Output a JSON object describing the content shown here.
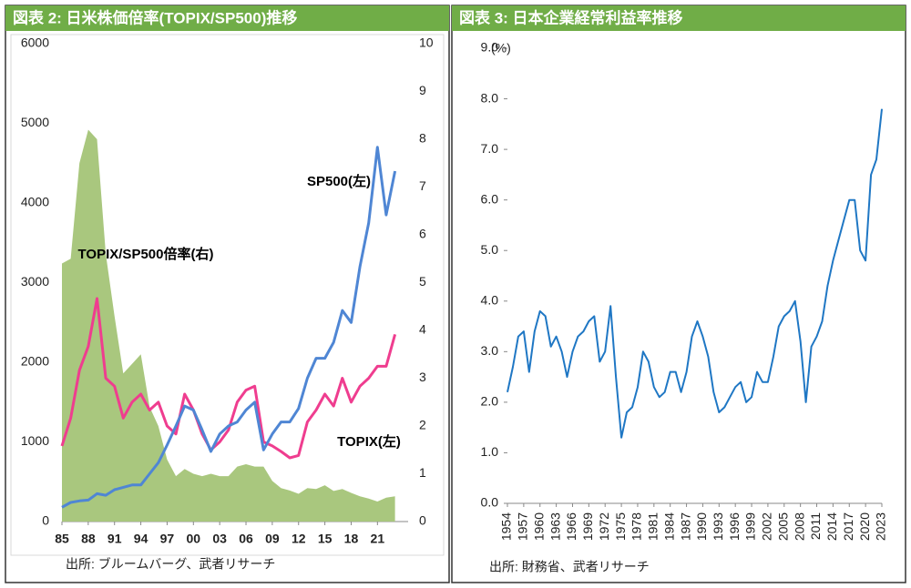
{
  "chart_data": [
    {
      "type": "line",
      "title": "図表 2: 日米株価倍率(TOPIX/SP500)推移",
      "source": "出所: ブルームバーグ、武者リサーチ",
      "annotations": [
        "SP500(左)",
        "TOPIX(左)",
        "TOPIX/SP500倍率(右)"
      ],
      "x": [
        1985,
        1986,
        1987,
        1988,
        1989,
        1990,
        1991,
        1992,
        1993,
        1994,
        1995,
        1996,
        1997,
        1998,
        1999,
        2000,
        2001,
        2002,
        2003,
        2004,
        2005,
        2006,
        2007,
        2008,
        2009,
        2010,
        2011,
        2012,
        2013,
        2014,
        2015,
        2016,
        2017,
        2018,
        2019,
        2020,
        2021,
        2022,
        2023
      ],
      "xlim": [
        1985,
        2024.5
      ],
      "xticks": [
        {
          "value": 1985,
          "label": "85"
        },
        {
          "value": 1988,
          "label": "88"
        },
        {
          "value": 1991,
          "label": "91"
        },
        {
          "value": 1994,
          "label": "94"
        },
        {
          "value": 1997,
          "label": "97"
        },
        {
          "value": 2000,
          "label": "00"
        },
        {
          "value": 2003,
          "label": "03"
        },
        {
          "value": 2006,
          "label": "06"
        },
        {
          "value": 2009,
          "label": "09"
        },
        {
          "value": 2012,
          "label": "12"
        },
        {
          "value": 2015,
          "label": "15"
        },
        {
          "value": 2018,
          "label": "18"
        },
        {
          "value": 2021,
          "label": "21"
        }
      ],
      "ylim": [
        0,
        6000
      ],
      "yticks": [
        0,
        1000,
        2000,
        3000,
        4000,
        5000,
        6000
      ],
      "y2lim": [
        0,
        10
      ],
      "y2ticks": [
        0,
        1,
        2,
        3,
        4,
        5,
        6,
        7,
        8,
        9,
        10
      ],
      "series": [
        {
          "name": "TOPIX/SP500倍率",
          "color": "#a9c77e",
          "style": "area",
          "axis": "y2",
          "values": [
            5.4,
            5.5,
            7.5,
            8.2,
            8.0,
            5.6,
            4.3,
            3.1,
            3.3,
            3.5,
            2.4,
            2.0,
            1.3,
            0.95,
            1.1,
            1.0,
            0.95,
            1.0,
            0.95,
            0.95,
            1.15,
            1.2,
            1.15,
            1.15,
            0.85,
            0.7,
            0.65,
            0.58,
            0.7,
            0.68,
            0.76,
            0.64,
            0.68,
            0.6,
            0.53,
            0.48,
            0.42,
            0.5,
            0.53
          ]
        },
        {
          "name": "TOPIX",
          "color": "#ef3d8f",
          "style": "line",
          "values": [
            950,
            1300,
            1900,
            2200,
            2800,
            1800,
            1700,
            1300,
            1500,
            1600,
            1400,
            1500,
            1200,
            1100,
            1600,
            1400,
            1100,
            900,
            1000,
            1150,
            1500,
            1650,
            1700,
            1000,
            950,
            880,
            800,
            830,
            1250,
            1400,
            1600,
            1450,
            1800,
            1500,
            1700,
            1800,
            1950,
            1950,
            2350
          ]
        },
        {
          "name": "SP500",
          "color": "#4f86d4",
          "style": "line",
          "values": [
            180,
            240,
            260,
            270,
            350,
            330,
            400,
            430,
            460,
            460,
            600,
            740,
            960,
            1200,
            1450,
            1400,
            1150,
            880,
            1100,
            1200,
            1250,
            1400,
            1500,
            900,
            1100,
            1250,
            1250,
            1420,
            1800,
            2050,
            2050,
            2250,
            2650,
            2500,
            3200,
            3750,
            4700,
            3850,
            4400
          ]
        }
      ]
    },
    {
      "type": "line",
      "title": "図表 3: 日本企業経常利益率推移",
      "source": "出所: 財務省、武者リサーチ",
      "ylabel": "(%)",
      "x": [
        1954,
        1955,
        1956,
        1957,
        1958,
        1959,
        1960,
        1961,
        1962,
        1963,
        1964,
        1965,
        1966,
        1967,
        1968,
        1969,
        1970,
        1971,
        1972,
        1973,
        1974,
        1975,
        1976,
        1977,
        1978,
        1979,
        1980,
        1981,
        1982,
        1983,
        1984,
        1985,
        1986,
        1987,
        1988,
        1989,
        1990,
        1991,
        1992,
        1993,
        1994,
        1995,
        1996,
        1997,
        1998,
        1999,
        2000,
        2001,
        2002,
        2003,
        2004,
        2005,
        2006,
        2007,
        2008,
        2009,
        2010,
        2011,
        2012,
        2013,
        2014,
        2015,
        2016,
        2017,
        2018,
        2019,
        2020,
        2021,
        2022,
        2023
      ],
      "xlim": [
        1954,
        2023
      ],
      "xticks": [
        1954,
        1957,
        1960,
        1963,
        1966,
        1969,
        1972,
        1975,
        1978,
        1981,
        1984,
        1987,
        1990,
        1993,
        1996,
        1999,
        2002,
        2005,
        2008,
        2011,
        2014,
        2017,
        2020,
        2023
      ],
      "ylim": [
        0,
        9
      ],
      "yticks": [
        {
          "value": 0,
          "label": "0.0"
        },
        {
          "value": 1,
          "label": "1.0"
        },
        {
          "value": 2,
          "label": "2.0"
        },
        {
          "value": 3,
          "label": "3.0"
        },
        {
          "value": 4,
          "label": "4.0"
        },
        {
          "value": 5,
          "label": "5.0"
        },
        {
          "value": 6,
          "label": "6.0"
        },
        {
          "value": 7,
          "label": "7.0"
        },
        {
          "value": 8,
          "label": "8.0"
        },
        {
          "value": 9,
          "label": "9.0"
        }
      ],
      "series": [
        {
          "name": "経常利益率",
          "color": "#1f77c4",
          "style": "line",
          "values": [
            2.2,
            2.7,
            3.3,
            3.4,
            2.6,
            3.4,
            3.8,
            3.7,
            3.1,
            3.3,
            3.0,
            2.5,
            3.0,
            3.3,
            3.4,
            3.6,
            3.7,
            2.8,
            3.0,
            3.9,
            2.5,
            1.3,
            1.8,
            1.9,
            2.3,
            3.0,
            2.8,
            2.3,
            2.1,
            2.2,
            2.6,
            2.6,
            2.2,
            2.6,
            3.3,
            3.6,
            3.3,
            2.9,
            2.2,
            1.8,
            1.9,
            2.1,
            2.3,
            2.4,
            2.0,
            2.1,
            2.6,
            2.4,
            2.4,
            2.9,
            3.5,
            3.7,
            3.8,
            4.0,
            3.2,
            2.0,
            3.1,
            3.3,
            3.6,
            4.3,
            4.8,
            5.2,
            5.6,
            6.0,
            6.0,
            5.0,
            4.8,
            6.5,
            6.8,
            7.8
          ]
        }
      ]
    }
  ]
}
